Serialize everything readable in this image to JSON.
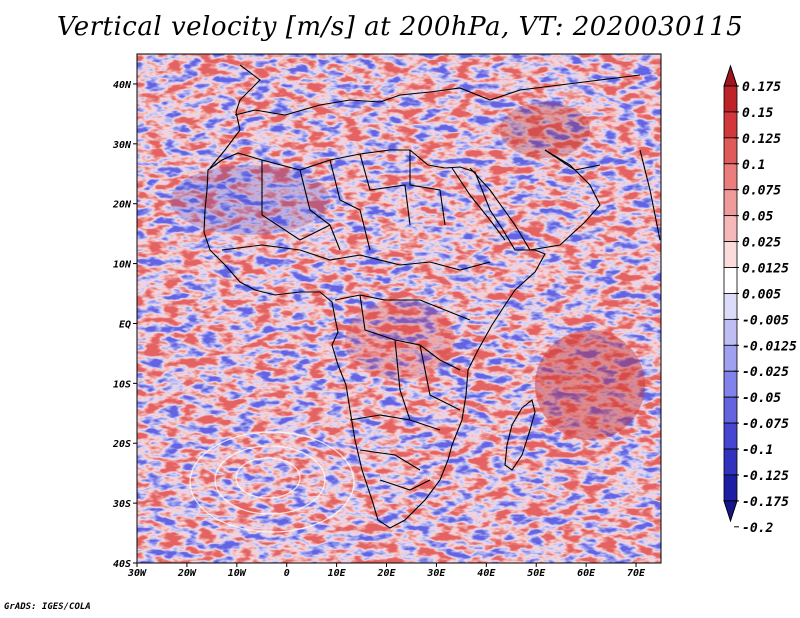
{
  "title": "Vertical velocity [m/s] at 200hPa, VT: 2020030115",
  "credit": "GrADS: IGES/COLA",
  "map": {
    "lat_labels": [
      {
        "label": "40N",
        "value": 40
      },
      {
        "label": "30N",
        "value": 30
      },
      {
        "label": "20N",
        "value": 20
      },
      {
        "label": "10N",
        "value": 10
      },
      {
        "label": "EQ",
        "value": 0
      },
      {
        "label": "10S",
        "value": -10
      },
      {
        "label": "20S",
        "value": -20
      },
      {
        "label": "30S",
        "value": -30
      },
      {
        "label": "40S",
        "value": -40
      }
    ],
    "lon_labels": [
      {
        "label": "30W",
        "value": -30
      },
      {
        "label": "20W",
        "value": -20
      },
      {
        "label": "10W",
        "value": -10
      },
      {
        "label": "0",
        "value": 0
      },
      {
        "label": "10E",
        "value": 10
      },
      {
        "label": "20E",
        "value": 20
      },
      {
        "label": "30E",
        "value": 30
      },
      {
        "label": "40E",
        "value": 40
      },
      {
        "label": "50E",
        "value": 50
      },
      {
        "label": "60E",
        "value": 60
      },
      {
        "label": "70E",
        "value": 70
      }
    ],
    "lon_range": [
      -30,
      75
    ],
    "lat_range": [
      -40,
      45
    ]
  },
  "colorbar": {
    "levels": [
      "0.175",
      "0.15",
      "0.125",
      "0.1",
      "0.075",
      "0.05",
      "0.025",
      "0.0125",
      "0.005",
      "-0.005",
      "-0.0125",
      "-0.025",
      "-0.05",
      "-0.075",
      "-0.1",
      "-0.125",
      "-0.175",
      "-0.2"
    ],
    "colors": [
      "#a0141e",
      "#be2328",
      "#d2373c",
      "#e15a5a",
      "#eb7d7d",
      "#f09b9b",
      "#f5b9b9",
      "#fadcdc",
      "#ffffff",
      "#dcdcfa",
      "#bebef5",
      "#a0a0f0",
      "#8282eb",
      "#6464e1",
      "#4646d2",
      "#3232be",
      "#1e1ea5",
      "#14148c"
    ]
  }
}
